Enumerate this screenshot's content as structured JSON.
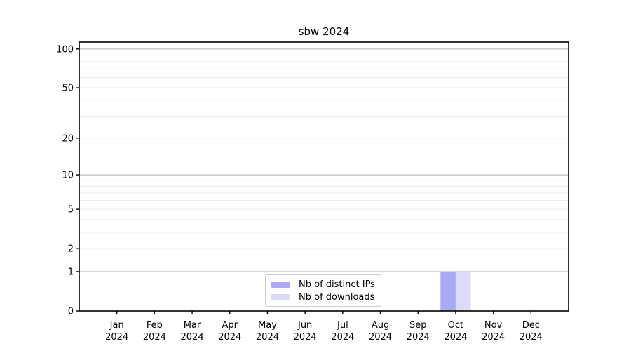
{
  "title": "sbw 2024",
  "legend": {
    "items": [
      {
        "label": "Nb of distinct IPs",
        "color": "#a9a9f6"
      },
      {
        "label": "Nb of downloads",
        "color": "#dcdcf8"
      }
    ]
  },
  "chart_data": {
    "type": "bar",
    "title": "sbw 2024",
    "xlabel": "",
    "ylabel": "",
    "y_scale": "log1p",
    "ylim": [
      0,
      113
    ],
    "y_ticks": [
      0,
      1,
      2,
      5,
      10,
      20,
      50,
      100
    ],
    "grid_major_values": [
      1,
      10,
      100
    ],
    "grid_minor_values": [
      2,
      3,
      4,
      5,
      6,
      7,
      8,
      9,
      20,
      30,
      40,
      50,
      60,
      70,
      80,
      90
    ],
    "categories": [
      "Jan",
      "Feb",
      "Mar",
      "Apr",
      "May",
      "Jun",
      "Jul",
      "Aug",
      "Sep",
      "Oct",
      "Nov",
      "Dec"
    ],
    "year": "2024",
    "series": [
      {
        "name": "Nb of distinct IPs",
        "color": "#a9a9f6",
        "values": [
          0,
          0,
          0,
          0,
          0,
          0,
          0,
          0,
          0,
          1,
          0,
          0
        ]
      },
      {
        "name": "Nb of downloads",
        "color": "#dcdcf8",
        "values": [
          0,
          0,
          0,
          0,
          0,
          0,
          0,
          0,
          0,
          1,
          0,
          0
        ]
      }
    ],
    "colors": {
      "grid_major": "#bdbdbd",
      "grid_minor": "#ececec",
      "axis": "#000000",
      "tick_text": "#000000"
    },
    "legend_position": "lower center"
  }
}
